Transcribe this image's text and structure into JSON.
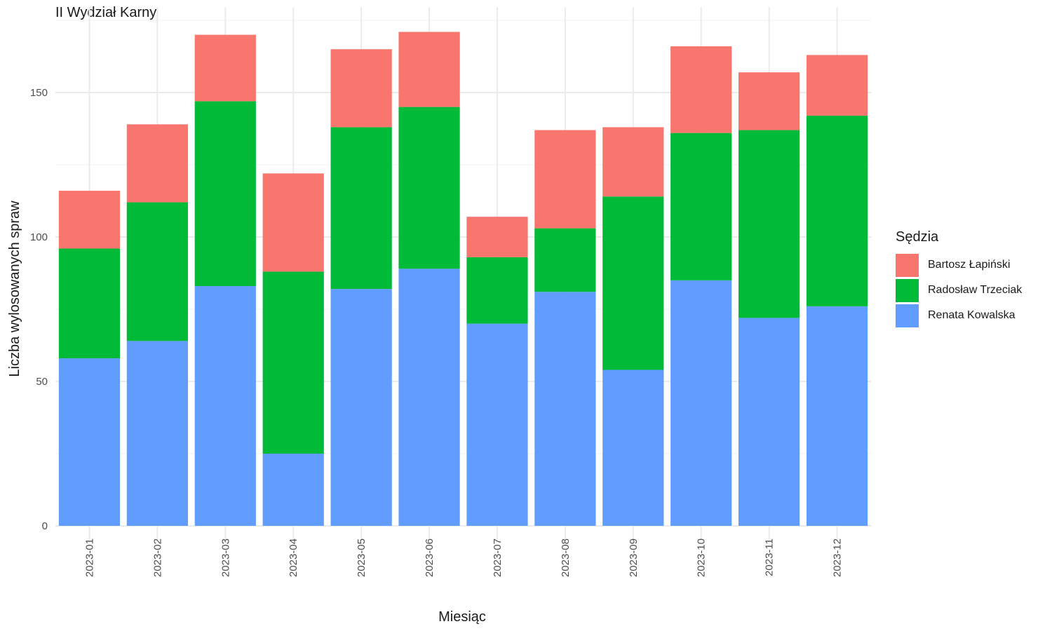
{
  "chart_data": {
    "type": "bar",
    "stacked": true,
    "title": "II Wydział Karny",
    "xlabel": "Miesiąc",
    "ylabel": "Liczba wylosowanych spraw",
    "ylim": [
      0,
      180
    ],
    "yticks": [
      0,
      50,
      100,
      150
    ],
    "grid": true,
    "legend_position": "right",
    "legend_title": "Sędzia",
    "categories": [
      "2023-01",
      "2023-02",
      "2023-03",
      "2023-04",
      "2023-05",
      "2023-06",
      "2023-07",
      "2023-08",
      "2023-09",
      "2023-10",
      "2023-11",
      "2023-12"
    ],
    "series": [
      {
        "name": "Renata Kowalska",
        "color": "#619CFF",
        "values": [
          58,
          64,
          83,
          25,
          82,
          89,
          70,
          81,
          54,
          85,
          72,
          76
        ]
      },
      {
        "name": "Radosław Trzeciak",
        "color": "#00BA38",
        "values": [
          38,
          48,
          64,
          63,
          56,
          56,
          23,
          22,
          60,
          51,
          65,
          66
        ]
      },
      {
        "name": "Bartosz Łapiński",
        "color": "#F8766D",
        "values": [
          20,
          27,
          23,
          34,
          27,
          26,
          14,
          34,
          24,
          30,
          20,
          21
        ]
      }
    ],
    "legend_order": [
      "Bartosz Łapiński",
      "Radosław Trzeciak",
      "Renata Kowalska"
    ]
  }
}
